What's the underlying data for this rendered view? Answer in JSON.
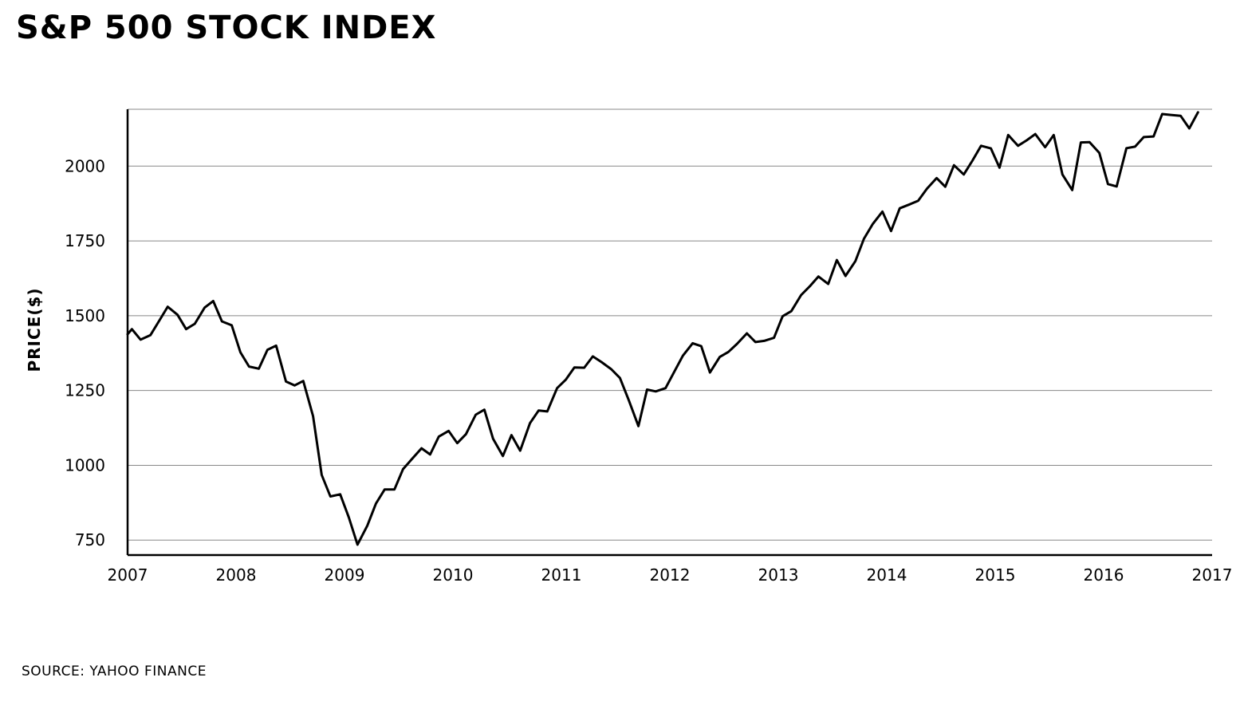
{
  "chart_data": {
    "type": "line",
    "title": "S&P 500 STOCK INDEX",
    "ylabel": "PRICE($)",
    "xlabel": "",
    "source": "SOURCE: YAHOO FINANCE",
    "xlim": [
      2007,
      2017
    ],
    "ylim": [
      700,
      2190
    ],
    "x_ticks": [
      2007,
      2008,
      2009,
      2010,
      2011,
      2012,
      2013,
      2014,
      2015,
      2016,
      2017
    ],
    "y_ticks": [
      750,
      1000,
      1250,
      1500,
      1750,
      2000
    ],
    "grid": "horizontal",
    "series": [
      {
        "values": [
          [
            2007.0,
            1438
          ],
          [
            2007.04,
            1455
          ],
          [
            2007.12,
            1420
          ],
          [
            2007.21,
            1435
          ],
          [
            2007.29,
            1482
          ],
          [
            2007.37,
            1530
          ],
          [
            2007.46,
            1503
          ],
          [
            2007.54,
            1455
          ],
          [
            2007.62,
            1473
          ],
          [
            2007.71,
            1527
          ],
          [
            2007.79,
            1549
          ],
          [
            2007.87,
            1481
          ],
          [
            2007.96,
            1468
          ],
          [
            2008.04,
            1378
          ],
          [
            2008.12,
            1330
          ],
          [
            2008.21,
            1323
          ],
          [
            2008.29,
            1386
          ],
          [
            2008.37,
            1400
          ],
          [
            2008.46,
            1280
          ],
          [
            2008.54,
            1267
          ],
          [
            2008.62,
            1282
          ],
          [
            2008.71,
            1164
          ],
          [
            2008.79,
            968
          ],
          [
            2008.87,
            896
          ],
          [
            2008.96,
            903
          ],
          [
            2009.04,
            826
          ],
          [
            2009.12,
            735
          ],
          [
            2009.21,
            798
          ],
          [
            2009.29,
            872
          ],
          [
            2009.37,
            919
          ],
          [
            2009.46,
            919
          ],
          [
            2009.54,
            987
          ],
          [
            2009.62,
            1020
          ],
          [
            2009.71,
            1057
          ],
          [
            2009.79,
            1036
          ],
          [
            2009.87,
            1096
          ],
          [
            2009.96,
            1115
          ],
          [
            2010.04,
            1074
          ],
          [
            2010.12,
            1104
          ],
          [
            2010.21,
            1169
          ],
          [
            2010.29,
            1186
          ],
          [
            2010.37,
            1089
          ],
          [
            2010.46,
            1031
          ],
          [
            2010.54,
            1101
          ],
          [
            2010.62,
            1049
          ],
          [
            2010.71,
            1141
          ],
          [
            2010.79,
            1183
          ],
          [
            2010.87,
            1180
          ],
          [
            2010.96,
            1258
          ],
          [
            2011.04,
            1286
          ],
          [
            2011.12,
            1327
          ],
          [
            2011.21,
            1326
          ],
          [
            2011.29,
            1364
          ],
          [
            2011.37,
            1345
          ],
          [
            2011.46,
            1321
          ],
          [
            2011.54,
            1292
          ],
          [
            2011.62,
            1219
          ],
          [
            2011.71,
            1131
          ],
          [
            2011.79,
            1253
          ],
          [
            2011.87,
            1247
          ],
          [
            2011.96,
            1258
          ],
          [
            2012.04,
            1312
          ],
          [
            2012.12,
            1366
          ],
          [
            2012.21,
            1408
          ],
          [
            2012.29,
            1398
          ],
          [
            2012.37,
            1310
          ],
          [
            2012.46,
            1362
          ],
          [
            2012.54,
            1379
          ],
          [
            2012.62,
            1406
          ],
          [
            2012.71,
            1441
          ],
          [
            2012.79,
            1412
          ],
          [
            2012.87,
            1416
          ],
          [
            2012.96,
            1426
          ],
          [
            2013.04,
            1498
          ],
          [
            2013.12,
            1515
          ],
          [
            2013.21,
            1569
          ],
          [
            2013.29,
            1598
          ],
          [
            2013.37,
            1631
          ],
          [
            2013.46,
            1606
          ],
          [
            2013.54,
            1686
          ],
          [
            2013.62,
            1633
          ],
          [
            2013.71,
            1682
          ],
          [
            2013.79,
            1757
          ],
          [
            2013.87,
            1806
          ],
          [
            2013.96,
            1848
          ],
          [
            2014.04,
            1783
          ],
          [
            2014.12,
            1859
          ],
          [
            2014.21,
            1872
          ],
          [
            2014.29,
            1884
          ],
          [
            2014.37,
            1924
          ],
          [
            2014.46,
            1960
          ],
          [
            2014.54,
            1931
          ],
          [
            2014.62,
            2003
          ],
          [
            2014.71,
            1972
          ],
          [
            2014.79,
            2018
          ],
          [
            2014.87,
            2068
          ],
          [
            2014.96,
            2059
          ],
          [
            2015.04,
            1995
          ],
          [
            2015.12,
            2104
          ],
          [
            2015.21,
            2068
          ],
          [
            2015.29,
            2086
          ],
          [
            2015.37,
            2107
          ],
          [
            2015.46,
            2063
          ],
          [
            2015.54,
            2104
          ],
          [
            2015.62,
            1972
          ],
          [
            2015.71,
            1920
          ],
          [
            2015.79,
            2079
          ],
          [
            2015.87,
            2080
          ],
          [
            2015.96,
            2044
          ],
          [
            2016.04,
            1940
          ],
          [
            2016.12,
            1932
          ],
          [
            2016.21,
            2060
          ],
          [
            2016.29,
            2065
          ],
          [
            2016.37,
            2097
          ],
          [
            2016.46,
            2099
          ],
          [
            2016.54,
            2174
          ],
          [
            2016.62,
            2171
          ],
          [
            2016.71,
            2168
          ],
          [
            2016.79,
            2126
          ],
          [
            2016.87,
            2180
          ]
        ]
      }
    ]
  }
}
